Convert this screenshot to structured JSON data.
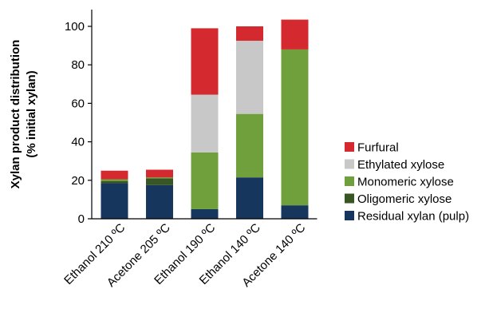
{
  "chart_data": {
    "type": "bar",
    "stacked": true,
    "ylabel": "Xylan product distribution (% initial xylan)",
    "ylabel_lines": [
      "Xylan product distribution",
      "(% initial xylan)"
    ],
    "xlabel": "",
    "ylim": [
      0,
      110
    ],
    "yticks": [
      0,
      20,
      40,
      60,
      80,
      100
    ],
    "grid": false,
    "legend_position": "right",
    "categories": [
      "Ethanol 210 ºC",
      "Acetone 205 ºC",
      "Ethanol 190 ºC",
      "Ethanol 140 ºC",
      "Acetone 140 ºC"
    ],
    "series": [
      {
        "name": "Residual xylan (pulp)",
        "color": "#17365d",
        "values": [
          18.5,
          17.5,
          5,
          21.5,
          7
        ]
      },
      {
        "name": "Oligomeric xylose",
        "color": "#375623",
        "values": [
          1,
          3.5,
          0,
          0,
          0
        ]
      },
      {
        "name": "Monomeric xylose",
        "color": "#70a03c",
        "values": [
          1,
          0.5,
          29.5,
          33,
          81
        ]
      },
      {
        "name": "Ethylated xylose",
        "color": "#c8c8c8",
        "values": [
          0,
          0,
          30,
          38,
          0
        ]
      },
      {
        "name": "Furfural",
        "color": "#d42a2f",
        "values": [
          4.5,
          4,
          34.5,
          7.5,
          15.5
        ]
      }
    ]
  }
}
